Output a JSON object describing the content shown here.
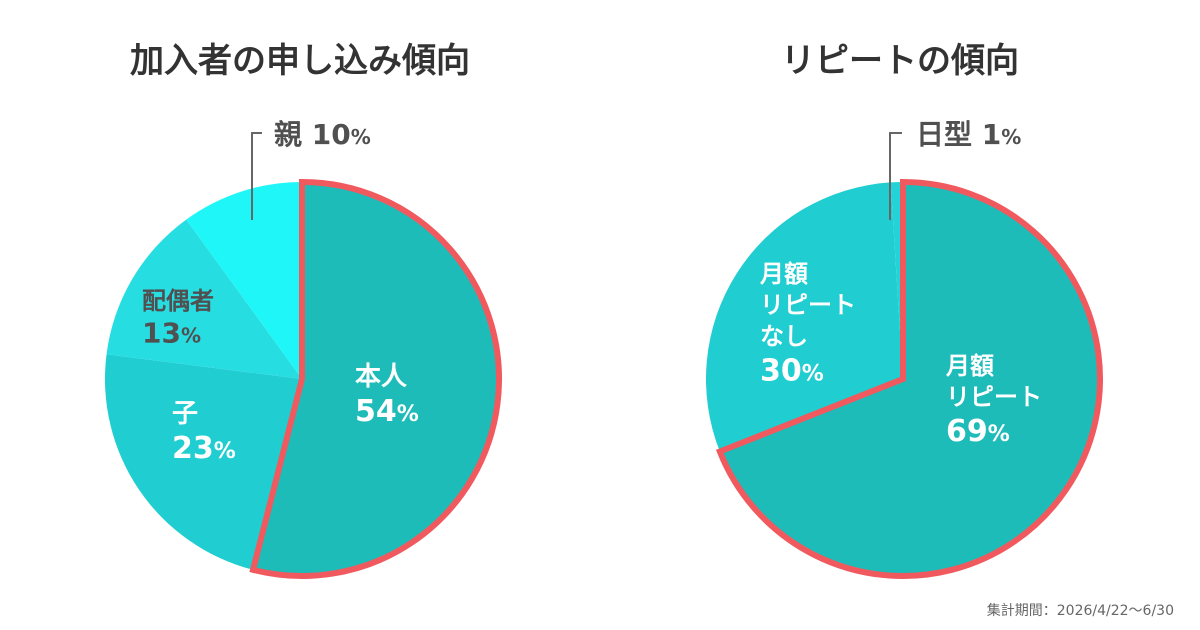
{
  "chart_data": [
    {
      "type": "pie",
      "title": "加入者の申し込み傾向",
      "slices": [
        {
          "label": "本人",
          "value": 54,
          "color": "#1ebcb9",
          "highlight": true
        },
        {
          "label": "子",
          "value": 23,
          "color": "#20cdd0",
          "highlight": false
        },
        {
          "label": "配偶者",
          "value": 13,
          "color": "#26dde2",
          "highlight": false
        },
        {
          "label": "親",
          "value": 10,
          "color": "#1ef6f7",
          "highlight": false
        }
      ]
    },
    {
      "type": "pie",
      "title": "リピートの傾向",
      "slices": [
        {
          "label": "月額\nリピート",
          "value": 69,
          "color": "#1ebcb9",
          "highlight": true
        },
        {
          "label": "月額\nリピート\nなし",
          "value": 30,
          "color": "#20cdd0",
          "highlight": false
        },
        {
          "label": "日型",
          "value": 1,
          "color": "#22d4d8",
          "highlight": false
        }
      ]
    }
  ],
  "highlight_color": "#f05a5e",
  "percent_sign": "%",
  "footnote": "集計期間：2026/4/22〜6/30"
}
